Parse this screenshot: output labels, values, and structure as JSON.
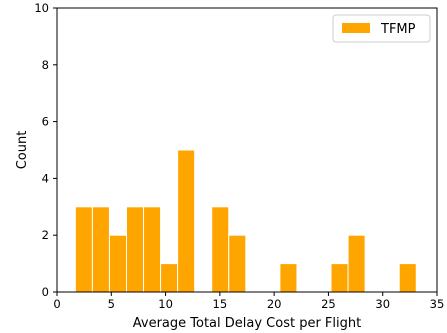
{
  "chart_data": {
    "type": "bar",
    "title": "",
    "xlabel": "Average Total Delay Cost per Flight",
    "ylabel": "Count",
    "xlim": [
      0,
      35
    ],
    "ylim": [
      0,
      10
    ],
    "xticks": [
      0,
      5,
      10,
      15,
      20,
      25,
      30,
      35
    ],
    "yticks": [
      0,
      2,
      4,
      6,
      8,
      10
    ],
    "grid": false,
    "legend": {
      "position": "top-right",
      "entries": [
        "TFMP"
      ]
    },
    "series": [
      {
        "name": "TFMP",
        "color": "#ffa500",
        "bins": [
          {
            "x0": 1.69,
            "x1": 3.26,
            "count": 3
          },
          {
            "x0": 3.26,
            "x1": 4.83,
            "count": 3
          },
          {
            "x0": 4.83,
            "x1": 6.4,
            "count": 2
          },
          {
            "x0": 6.4,
            "x1": 7.97,
            "count": 3
          },
          {
            "x0": 7.97,
            "x1": 9.54,
            "count": 3
          },
          {
            "x0": 9.54,
            "x1": 11.11,
            "count": 1
          },
          {
            "x0": 11.11,
            "x1": 12.68,
            "count": 5
          },
          {
            "x0": 14.25,
            "x1": 15.82,
            "count": 3
          },
          {
            "x0": 15.82,
            "x1": 17.39,
            "count": 2
          },
          {
            "x0": 20.53,
            "x1": 22.1,
            "count": 1
          },
          {
            "x0": 25.24,
            "x1": 26.81,
            "count": 1
          },
          {
            "x0": 26.81,
            "x1": 28.38,
            "count": 2
          },
          {
            "x0": 31.52,
            "x1": 33.09,
            "count": 1
          }
        ]
      }
    ]
  }
}
